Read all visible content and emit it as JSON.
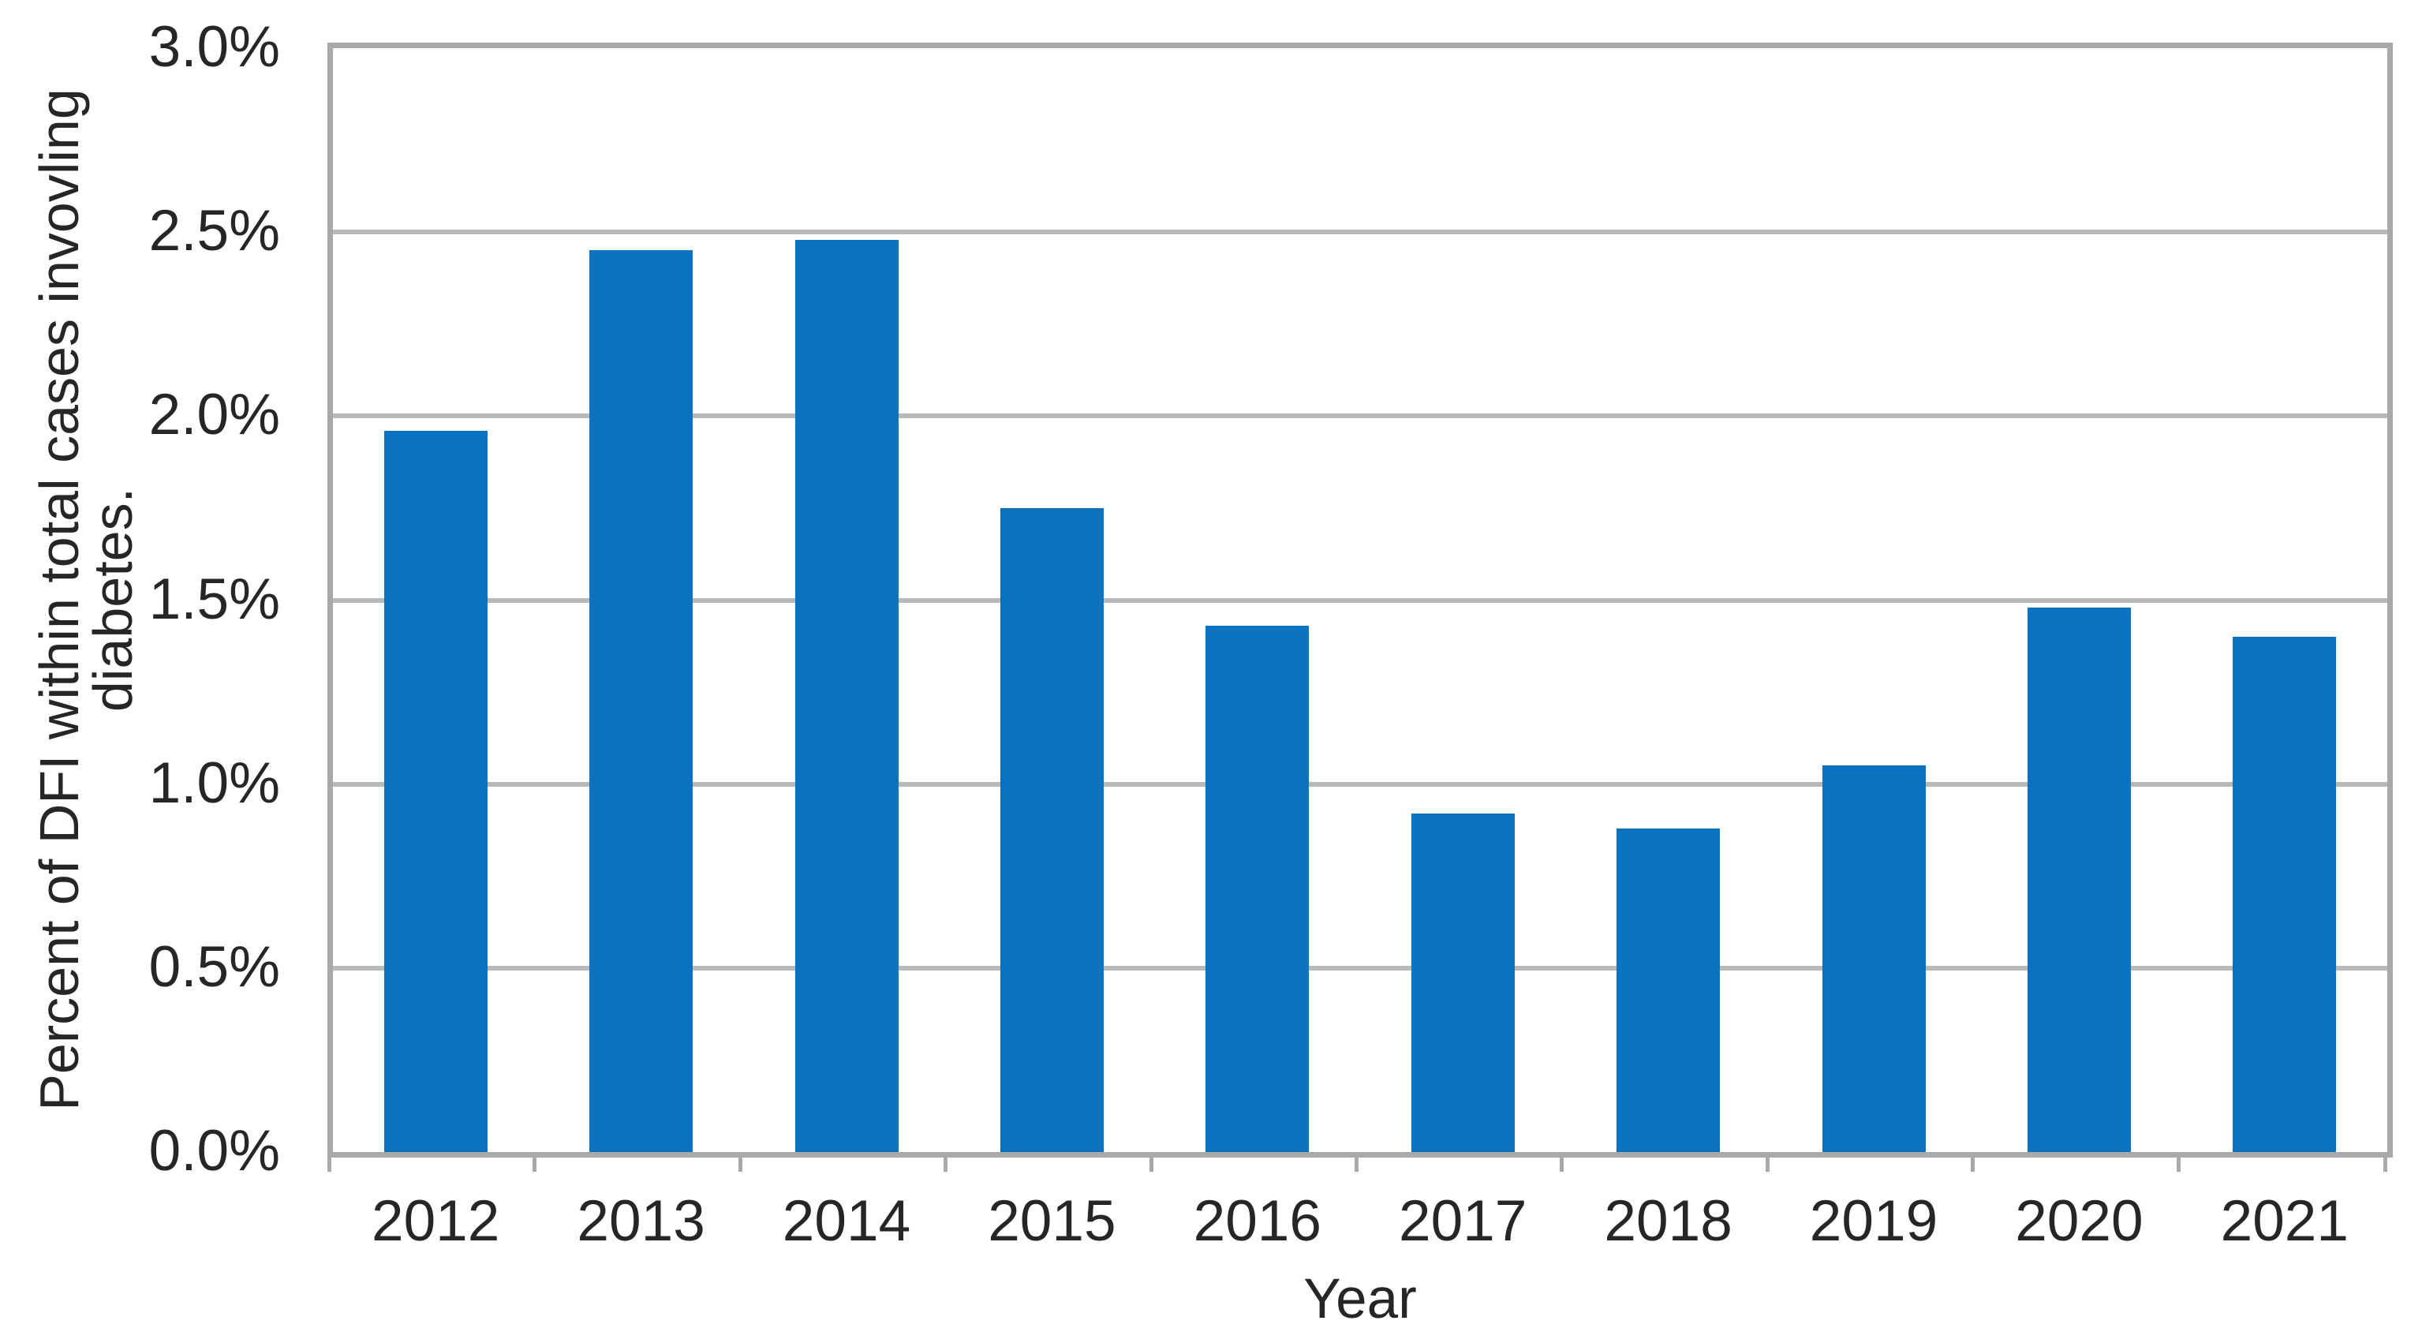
{
  "chart_data": {
    "type": "bar",
    "title": "",
    "categories": [
      "2012",
      "2013",
      "2014",
      "2015",
      "2016",
      "2017",
      "2018",
      "2019",
      "2020",
      "2021"
    ],
    "values": [
      1.96,
      2.45,
      2.48,
      1.75,
      1.43,
      0.92,
      0.88,
      1.05,
      1.48,
      1.4
    ],
    "xlabel": "Year",
    "ylabel": "Percent of DFI within total cases invovling diabetes.",
    "ylabel_lines": [
      "Percent of DFI within total cases invovling",
      "diabetes."
    ],
    "y_ticks": [
      {
        "label": "3.0%",
        "value": 3.0
      },
      {
        "label": "2.5%",
        "value": 2.5
      },
      {
        "label": "2.0%",
        "value": 2.0
      },
      {
        "label": "1.5%",
        "value": 1.5
      },
      {
        "label": "1.0%",
        "value": 1.0
      },
      {
        "label": "0.5%",
        "value": 0.5
      },
      {
        "label": "0.0%",
        "value": 0.0
      }
    ],
    "ylim": [
      0,
      3.0
    ],
    "grid": true,
    "legend": "none",
    "bar_color": "#0A72BE",
    "grid_color": "#B9B9B9",
    "frame_color": "#A9A9A9",
    "text_color": "#262626"
  }
}
